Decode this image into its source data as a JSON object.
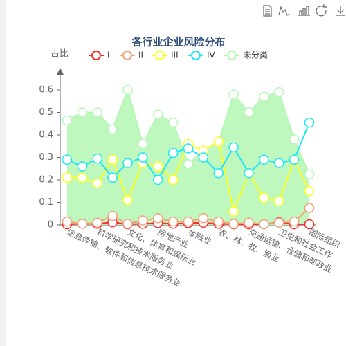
{
  "chart_data": {
    "type": "line",
    "title": "各行业企业风险分布",
    "y_label": "占比",
    "categories": [
      "信息传输、软件和信息技术服务业",
      null,
      "科学研究和技术服务业",
      null,
      "文化、体育和娱乐业",
      null,
      "房地产业",
      null,
      "金融业",
      null,
      "农、林、牧、渔业",
      null,
      "交通运输、仓储和邮政业",
      null,
      "卫生和社会工作",
      null,
      "国际组织"
    ],
    "series": [
      {
        "name": "I",
        "color": "#ff2a2a",
        "values": [
          0.003,
          0.005,
          0.005,
          0.012,
          0.003,
          0.005,
          0.008,
          0.005,
          0.008,
          0.01,
          0.005,
          0.003,
          0.003,
          0.003,
          0.012,
          0.003,
          0.003
        ]
      },
      {
        "name": "II",
        "color": "#f4a078",
        "values": [
          0.015,
          0.005,
          0.01,
          0.04,
          0.005,
          0.02,
          0.03,
          0.015,
          0.015,
          0.03,
          0.015,
          0.005,
          0.01,
          0.003,
          0.01,
          0.015,
          0.075
        ]
      },
      {
        "name": "III",
        "color": "#ffff1a",
        "values": [
          0.21,
          0.21,
          0.185,
          0.29,
          0.11,
          0.275,
          0.26,
          0.2,
          0.36,
          0.33,
          0.37,
          0.06,
          0.23,
          0.12,
          0.105,
          0.29,
          0.15
        ]
      },
      {
        "name": "IV",
        "color": "#1ae8f5",
        "values": [
          0.29,
          0.26,
          0.295,
          0.21,
          0.275,
          0.3,
          0.2,
          0.32,
          0.34,
          0.3,
          0.23,
          0.345,
          0.23,
          0.29,
          0.275,
          0.29,
          0.455
        ]
      },
      {
        "name": "未分类",
        "color": "#b4f7b4",
        "area": true,
        "values": [
          0.465,
          0.5,
          0.5,
          0.425,
          0.6,
          0.36,
          0.49,
          0.455,
          0.27,
          0.33,
          0.37,
          0.58,
          0.5,
          0.57,
          0.59,
          0.38,
          0.225
        ]
      }
    ],
    "ylim": [
      0,
      0.7
    ],
    "yticks": [
      0,
      0.1,
      0.2,
      0.3,
      0.4,
      0.5,
      0.6
    ],
    "legend": "top"
  }
}
